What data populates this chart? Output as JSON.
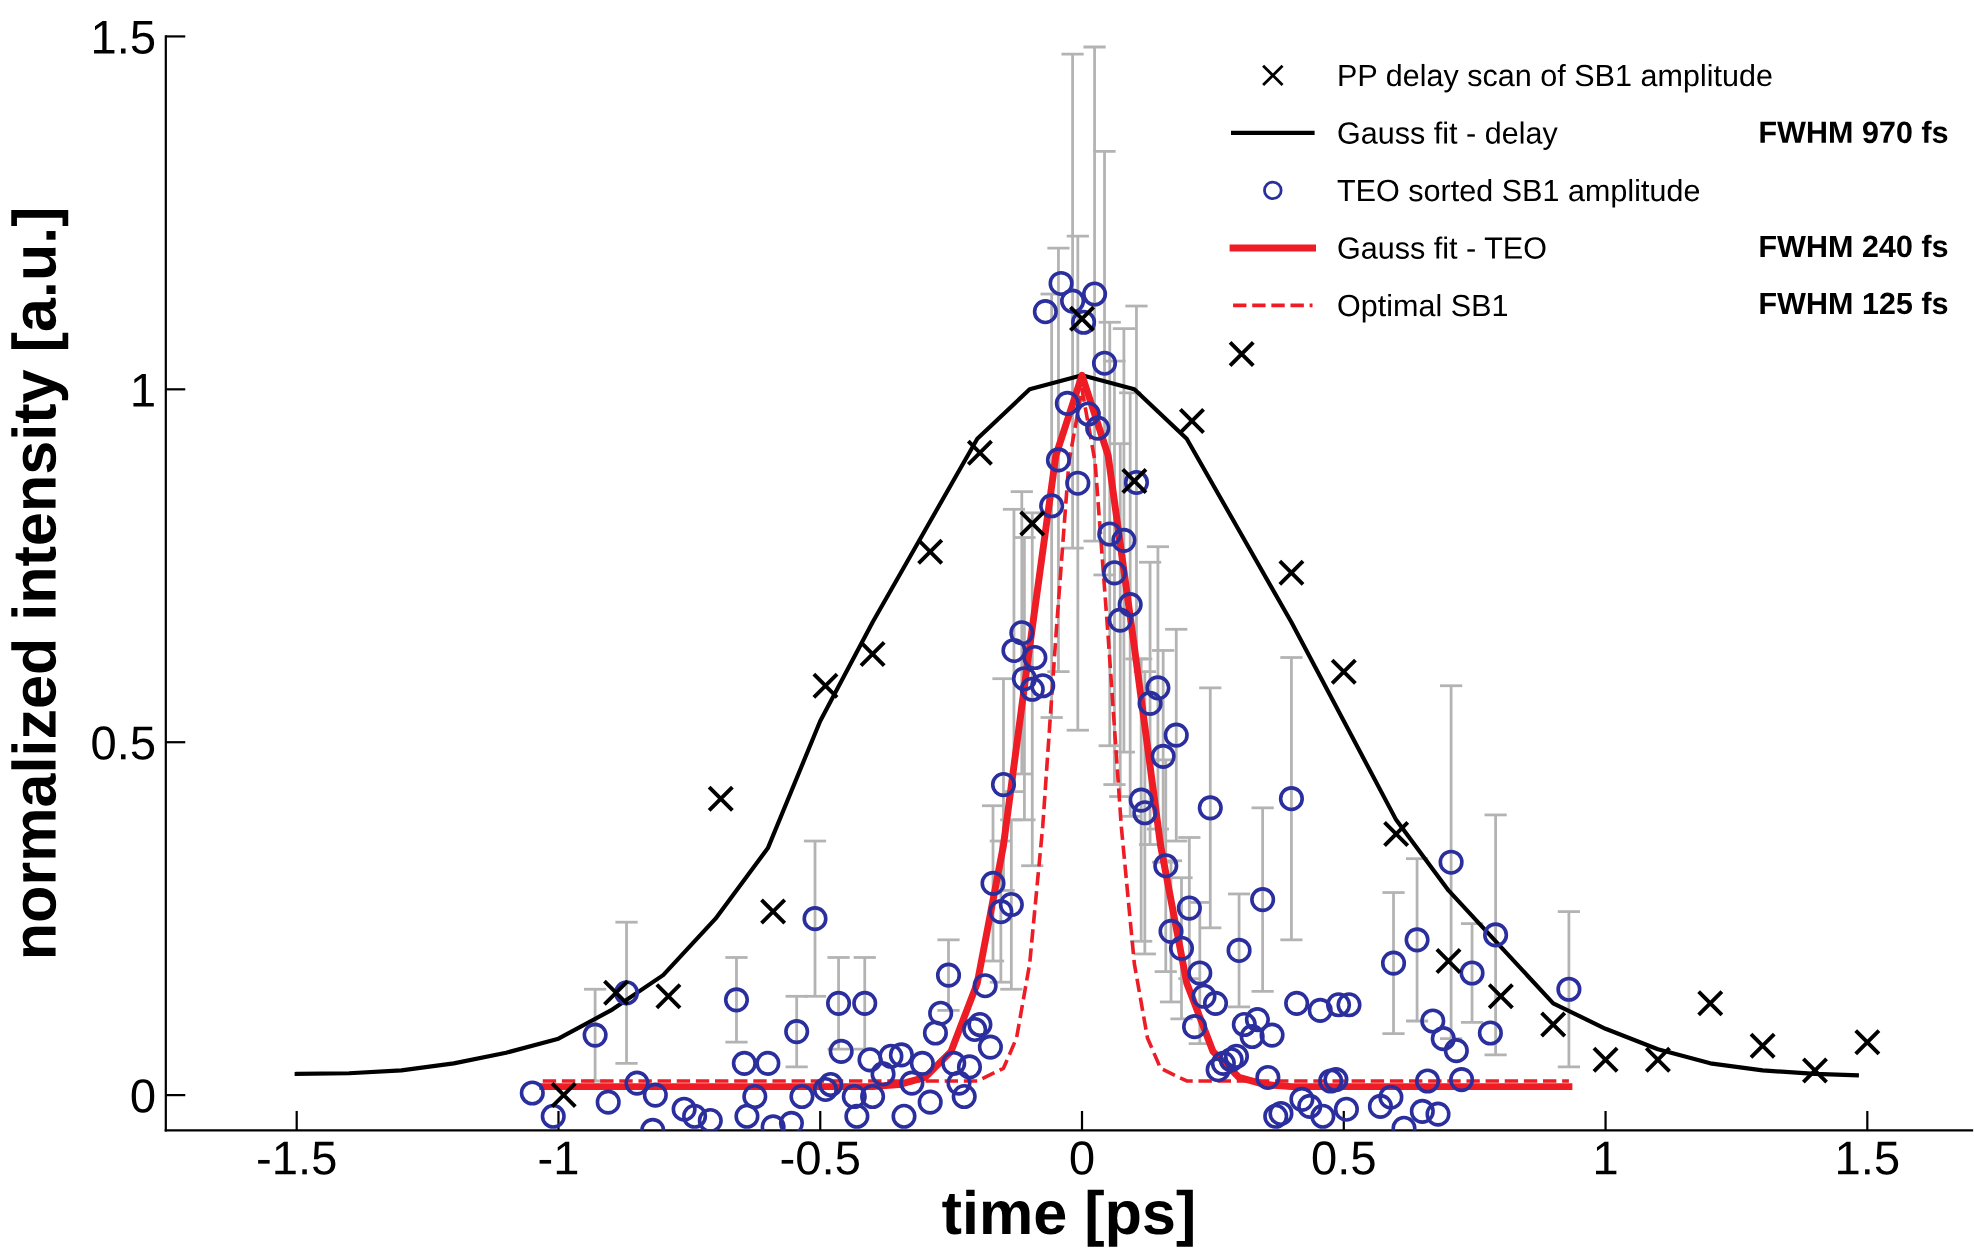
{
  "chart_data": {
    "type": "scatter",
    "xlabel": "time [ps]",
    "ylabel": "normalized intensity [a.u.]",
    "xlim": [
      -1.75,
      1.7
    ],
    "ylim": [
      -0.05,
      1.5
    ],
    "xticks": [
      -1.5,
      -1,
      -0.5,
      0,
      0.5,
      1,
      1.5
    ],
    "yticks": [
      0,
      0.5,
      1,
      1.5
    ],
    "grid": false,
    "legend": "top right",
    "annotations": [
      "FWHM 970 fs",
      "FWHM 240 fs",
      "FWHM 125 fs"
    ],
    "series": [
      {
        "name": "PP delay scan of SB1 amplitude",
        "marker": "cross",
        "color": "#000000",
        "x": [
          -0.99,
          -0.89,
          -0.79,
          -0.69,
          -0.59,
          -0.49,
          -0.4,
          -0.29,
          -0.195,
          -0.095,
          0.0,
          0.1,
          0.21,
          0.305,
          0.4,
          0.5,
          0.6,
          0.7,
          0.8,
          0.9,
          1.0,
          1.1,
          1.2,
          1.3,
          1.4,
          1.5
        ],
        "values": [
          0.0,
          0.145,
          0.14,
          0.42,
          0.26,
          0.58,
          0.625,
          0.77,
          0.91,
          0.81,
          1.1,
          0.87,
          0.955,
          1.05,
          0.74,
          0.6,
          0.37,
          0.19,
          0.14,
          0.1,
          0.05,
          0.05,
          0.13,
          0.07,
          0.035,
          0.075
        ]
      },
      {
        "name": "Gauss fit - delay",
        "type": "line",
        "color": "#000000",
        "line_style": "solid",
        "x": [
          -1.5,
          -1.4,
          -1.3,
          -1.2,
          -1.1,
          -1.0,
          -0.9,
          -0.8,
          -0.7,
          -0.6,
          -0.5,
          -0.4,
          -0.3,
          -0.2,
          -0.1,
          0.0,
          0.1,
          0.2,
          0.3,
          0.4,
          0.5,
          0.6,
          0.7,
          0.8,
          0.9,
          1.0,
          1.1,
          1.2,
          1.3,
          1.4,
          1.48
        ],
        "values": [
          0.03,
          0.031,
          0.035,
          0.045,
          0.06,
          0.08,
          0.12,
          0.17,
          0.25,
          0.35,
          0.53,
          0.67,
          0.8,
          0.93,
          1.0,
          1.02,
          1.0,
          0.93,
          0.8,
          0.67,
          0.53,
          0.39,
          0.29,
          0.21,
          0.13,
          0.094,
          0.065,
          0.045,
          0.035,
          0.03,
          0.028
        ]
      },
      {
        "name": "TEO sorted SB1 amplitude",
        "marker": "circle",
        "color": "#2b2f9e",
        "x": [
          -1.05,
          -1.01,
          -0.93,
          -0.905,
          -0.87,
          -0.85,
          -0.82,
          -0.815,
          -0.76,
          -0.74,
          -0.71,
          -0.66,
          -0.645,
          -0.64,
          -0.625,
          -0.6,
          -0.59,
          -0.555,
          -0.545,
          -0.535,
          -0.51,
          -0.49,
          -0.48,
          -0.465,
          -0.46,
          -0.435,
          -0.43,
          -0.415,
          -0.405,
          -0.4,
          -0.38,
          -0.365,
          -0.345,
          -0.34,
          -0.325,
          -0.305,
          -0.29,
          -0.28,
          -0.27,
          -0.255,
          -0.245,
          -0.235,
          -0.225,
          -0.215,
          -0.205,
          -0.195,
          -0.185,
          -0.175,
          -0.17,
          -0.155,
          -0.15,
          -0.135,
          -0.13,
          -0.115,
          -0.11,
          -0.095,
          -0.09,
          -0.075,
          -0.058,
          -0.045,
          -0.028,
          -0.008,
          -0.07,
          -0.04,
          -0.018,
          0.003,
          0.024,
          0.012,
          0.03,
          0.043,
          0.053,
          0.08,
          0.062,
          0.092,
          0.104,
          0.073,
          0.113,
          0.12,
          0.13,
          0.145,
          0.155,
          0.16,
          0.18,
          0.205,
          0.17,
          0.19,
          0.225,
          0.245,
          0.215,
          0.233,
          0.255,
          0.26,
          0.27,
          0.285,
          0.295,
          0.3,
          0.31,
          0.325,
          0.335,
          0.345,
          0.363,
          0.355,
          0.37,
          0.38,
          0.4,
          0.41,
          0.42,
          0.435,
          0.455,
          0.46,
          0.475,
          0.485,
          0.49,
          0.505,
          0.51,
          0.57,
          0.595,
          0.64,
          0.705,
          0.67,
          0.69,
          0.715,
          0.745,
          0.79,
          0.78,
          0.725,
          0.66,
          0.59,
          0.65,
          0.68,
          0.615,
          0.93
        ],
        "values": [
          0.003,
          -0.03,
          0.085,
          -0.01,
          0.145,
          0.017,
          -0.05,
          0.0,
          -0.02,
          -0.03,
          -0.036,
          0.135,
          0.045,
          -0.03,
          -0.002,
          0.045,
          -0.045,
          -0.04,
          0.09,
          -0.002,
          0.25,
          0.008,
          0.015,
          0.13,
          0.062,
          -0.002,
          -0.03,
          0.13,
          0.05,
          -0.002,
          0.03,
          0.055,
          0.057,
          -0.03,
          0.017,
          0.045,
          -0.01,
          0.088,
          0.116,
          0.17,
          0.045,
          0.017,
          -0.002,
          0.04,
          0.093,
          0.1,
          0.155,
          0.068,
          0.3,
          0.26,
          0.44,
          0.27,
          0.63,
          0.655,
          0.59,
          0.575,
          0.62,
          0.58,
          0.835,
          0.9,
          0.98,
          0.867,
          1.11,
          1.15,
          1.125,
          1.095,
          1.135,
          0.965,
          0.945,
          1.037,
          0.795,
          0.786,
          0.74,
          0.695,
          0.868,
          0.673,
          0.418,
          0.4,
          0.555,
          0.577,
          0.48,
          0.325,
          0.51,
          0.265,
          0.232,
          0.208,
          0.173,
          0.407,
          0.097,
          0.14,
          0.13,
          0.036,
          0.045,
          0.05,
          0.055,
          0.205,
          0.1,
          0.083,
          0.107,
          0.277,
          0.085,
          0.025,
          -0.03,
          -0.026,
          0.42,
          0.13,
          -0.006,
          -0.016,
          0.12,
          -0.03,
          0.02,
          0.022,
          0.128,
          -0.02,
          0.128,
          -0.016,
          0.187,
          0.22,
          0.33,
          0.105,
          0.08,
          0.063,
          0.173,
          0.227,
          0.088,
          0.022,
          0.02,
          -0.003,
          -0.023,
          -0.027,
          -0.047,
          0.15
        ],
        "errors": [
          null,
          null,
          0.065,
          null,
          0.1,
          null,
          null,
          null,
          null,
          null,
          null,
          0.06,
          null,
          null,
          null,
          null,
          null,
          null,
          0.05,
          null,
          0.11,
          null,
          null,
          0.065,
          null,
          null,
          null,
          0.065,
          null,
          null,
          null,
          null,
          null,
          null,
          null,
          null,
          null,
          null,
          null,
          0.05,
          null,
          null,
          null,
          null,
          null,
          null,
          null,
          null,
          0.11,
          0.1,
          0.15,
          0.12,
          0.2,
          0.2,
          0.2,
          0.25,
          null,
          null,
          0.3,
          0.3,
          null,
          0.35,
          null,
          null,
          0.35,
          null,
          0.35,
          null,
          null,
          0.3,
          0.3,
          0.3,
          0.3,
          0.3,
          0.25,
          0.25,
          0.2,
          0.2,
          0.2,
          0.2,
          0.15,
          0.15,
          0.15,
          0.1,
          0.1,
          0.1,
          0.1,
          0.17,
          null,
          null,
          null,
          null,
          null,
          null,
          null,
          0.08,
          null,
          null,
          null,
          0.13,
          null,
          null,
          null,
          null,
          0.2,
          null,
          null,
          null,
          null,
          null,
          null,
          null,
          null,
          null,
          null,
          null,
          0.1,
          0.115,
          0.25,
          null,
          null,
          null,
          0.07,
          0.17,
          null,
          null,
          null,
          null,
          null,
          null,
          null,
          0.11
        ]
      },
      {
        "name": "Gauss fit - TEO",
        "type": "line",
        "color": "#ee1c25",
        "line_style": "solid",
        "x": [
          -1.03,
          -0.4,
          -0.35,
          -0.3,
          -0.25,
          -0.2,
          -0.15,
          -0.1,
          -0.05,
          0.0,
          0.05,
          0.1,
          0.15,
          0.2,
          0.25,
          0.3,
          0.35,
          0.4,
          0.93
        ],
        "values": [
          0.012,
          0.012,
          0.015,
          0.025,
          0.062,
          0.159,
          0.354,
          0.635,
          0.906,
          1.02,
          0.906,
          0.635,
          0.354,
          0.159,
          0.062,
          0.025,
          0.015,
          0.012,
          0.012
        ]
      },
      {
        "name": "Optimal SB1",
        "type": "line",
        "color": "#ee1c25",
        "line_style": "dashed",
        "x": [
          -1.03,
          -0.2,
          -0.15,
          -0.125,
          -0.1,
          -0.075,
          -0.05,
          -0.025,
          0.0,
          0.025,
          0.05,
          0.075,
          0.1,
          0.125,
          0.15,
          0.2,
          0.93
        ],
        "values": [
          0.02,
          0.02,
          0.038,
          0.081,
          0.186,
          0.381,
          0.649,
          0.897,
          1.0,
          0.897,
          0.649,
          0.381,
          0.186,
          0.081,
          0.038,
          0.02,
          0.02
        ]
      }
    ]
  }
}
